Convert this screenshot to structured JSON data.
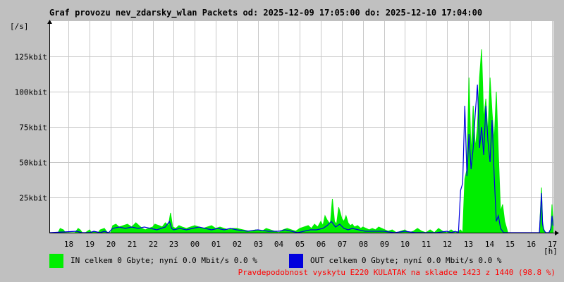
{
  "title": "Graf provozu nev_zdarsky_wlan Packets od: 2025-12-09 17:05:00 do: 2025-12-10 17:04:00",
  "colors": {
    "background": "#c0c0c0",
    "plot_background": "#ffffff",
    "grid": "#c8c8c8",
    "in_series": "#00ee00",
    "out_series": "#0000dd",
    "footer_text": "#ff0000"
  },
  "chart_data": {
    "type": "area",
    "title": "Graf provozu nev_zdarsky_wlan Packets od: 2025-12-09 17:05:00 do: 2025-12-10 17:04:00",
    "ylabel": "[/s]",
    "xlabel": "[h]",
    "ylim": [
      0,
      150
    ],
    "y_unit": "kbit",
    "grid": true,
    "y_ticks": [
      {
        "value": 25,
        "label": "25kbit"
      },
      {
        "value": 50,
        "label": "50kbit"
      },
      {
        "value": 75,
        "label": "75kbit"
      },
      {
        "value": 100,
        "label": "100kbit"
      },
      {
        "value": 125,
        "label": "125kbit"
      }
    ],
    "x_hours": [
      17.083,
      41.067
    ],
    "x_ticks": [
      {
        "hour": 18,
        "label": "18"
      },
      {
        "hour": 19,
        "label": "19"
      },
      {
        "hour": 20,
        "label": "20"
      },
      {
        "hour": 21,
        "label": "21"
      },
      {
        "hour": 22,
        "label": "22"
      },
      {
        "hour": 23,
        "label": "23"
      },
      {
        "hour": 24,
        "label": "00"
      },
      {
        "hour": 25,
        "label": "01"
      },
      {
        "hour": 26,
        "label": "02"
      },
      {
        "hour": 27,
        "label": "03"
      },
      {
        "hour": 28,
        "label": "04"
      },
      {
        "hour": 29,
        "label": "05"
      },
      {
        "hour": 30,
        "label": "06"
      },
      {
        "hour": 31,
        "label": "07"
      },
      {
        "hour": 32,
        "label": "08"
      },
      {
        "hour": 33,
        "label": "09"
      },
      {
        "hour": 34,
        "label": "10"
      },
      {
        "hour": 35,
        "label": "11"
      },
      {
        "hour": 36,
        "label": "12"
      },
      {
        "hour": 37,
        "label": "13"
      },
      {
        "hour": 38,
        "label": "14"
      },
      {
        "hour": 39,
        "label": "15"
      },
      {
        "hour": 40,
        "label": "16"
      },
      {
        "hour": 41,
        "label": "17"
      }
    ],
    "series": [
      {
        "name": "IN",
        "style": "area",
        "x": [
          17.1,
          17.5,
          17.6,
          17.75,
          17.85,
          17.95,
          18.3,
          18.45,
          18.55,
          18.65,
          18.8,
          19.0,
          19.1,
          19.2,
          19.4,
          19.5,
          19.7,
          19.85,
          20.0,
          20.1,
          20.25,
          20.4,
          20.6,
          20.8,
          21.0,
          21.2,
          21.35,
          21.5,
          21.65,
          21.8,
          22.0,
          22.1,
          22.3,
          22.45,
          22.6,
          22.75,
          22.85,
          22.95,
          23.1,
          23.25,
          23.4,
          23.6,
          23.8,
          24.0,
          24.2,
          24.4,
          24.6,
          24.8,
          25.0,
          25.2,
          25.4,
          25.6,
          25.8,
          26.0,
          26.3,
          26.6,
          26.9,
          27.2,
          27.4,
          27.6,
          27.8,
          28.0,
          28.2,
          28.4,
          28.6,
          28.8,
          29.0,
          29.2,
          29.4,
          29.55,
          29.7,
          29.85,
          30.0,
          30.1,
          30.2,
          30.3,
          30.45,
          30.55,
          30.65,
          30.75,
          30.85,
          31.0,
          31.1,
          31.2,
          31.3,
          31.4,
          31.5,
          31.6,
          31.75,
          31.9,
          32.0,
          32.15,
          32.3,
          32.45,
          32.6,
          32.75,
          32.9,
          33.05,
          33.2,
          33.4,
          33.6,
          33.8,
          34.0,
          34.2,
          34.4,
          34.6,
          34.8,
          35.0,
          35.2,
          35.4,
          35.6,
          35.8,
          36.0,
          36.2,
          36.4,
          36.55,
          36.65,
          36.75,
          36.85,
          36.95,
          37.05,
          37.15,
          37.25,
          37.35,
          37.45,
          37.55,
          37.65,
          37.75,
          37.85,
          37.95,
          38.05,
          38.15,
          38.25,
          38.35,
          38.45,
          38.55,
          38.65,
          38.75,
          38.9,
          39.0,
          39.1,
          39.3,
          39.6,
          39.9,
          40.2,
          40.4,
          40.5,
          40.55,
          40.6,
          40.65,
          40.7,
          40.8,
          40.9,
          40.95,
          41.0,
          41.05
        ],
        "values": [
          0,
          0,
          3,
          2,
          0,
          0,
          0,
          3,
          2,
          0,
          0,
          2,
          0,
          1,
          0,
          2,
          3,
          0,
          0,
          5,
          6,
          4,
          5,
          6,
          4,
          7,
          5,
          3,
          2,
          3,
          4,
          6,
          5,
          4,
          7,
          5,
          14,
          4,
          3,
          5,
          4,
          3,
          4,
          5,
          4,
          3,
          4,
          5,
          3,
          4,
          3,
          2,
          3,
          3,
          2,
          1,
          2,
          1,
          3,
          2,
          1,
          0,
          2,
          3,
          2,
          1,
          3,
          4,
          5,
          3,
          6,
          4,
          8,
          5,
          12,
          9,
          6,
          24,
          8,
          6,
          18,
          10,
          8,
          12,
          7,
          5,
          6,
          4,
          5,
          3,
          4,
          3,
          2,
          3,
          2,
          4,
          3,
          2,
          1,
          2,
          0,
          1,
          2,
          0,
          1,
          3,
          1,
          0,
          2,
          0,
          3,
          1,
          0,
          2,
          0,
          1,
          2,
          0,
          38,
          45,
          110,
          55,
          90,
          60,
          75,
          110,
          130,
          80,
          95,
          70,
          110,
          85,
          65,
          100,
          55,
          15,
          20,
          8,
          0,
          0,
          0,
          0,
          0,
          0,
          0,
          0,
          32,
          8,
          3,
          1,
          0,
          0,
          0,
          5,
          20,
          8
        ]
      },
      {
        "name": "OUT",
        "style": "line",
        "x": [
          17.1,
          18.4,
          18.6,
          19.0,
          19.2,
          19.5,
          19.7,
          19.9,
          20.1,
          20.4,
          20.7,
          21.0,
          21.3,
          21.6,
          21.9,
          22.2,
          22.4,
          22.6,
          22.8,
          22.9,
          23.0,
          23.3,
          23.6,
          23.9,
          24.2,
          24.5,
          24.8,
          25.1,
          25.4,
          25.7,
          26.0,
          26.5,
          27.0,
          27.5,
          28.0,
          28.3,
          28.6,
          28.9,
          29.2,
          29.5,
          29.8,
          30.1,
          30.3,
          30.5,
          30.7,
          30.9,
          31.1,
          31.3,
          31.5,
          31.8,
          32.1,
          32.5,
          33.0,
          33.5,
          34.0,
          34.5,
          35.0,
          35.5,
          36.0,
          36.2,
          36.4,
          36.55,
          36.65,
          36.75,
          36.85,
          36.95,
          37.05,
          37.15,
          37.25,
          37.35,
          37.45,
          37.55,
          37.65,
          37.75,
          37.85,
          37.95,
          38.05,
          38.15,
          38.25,
          38.35,
          38.45,
          38.55,
          38.7,
          38.9,
          39.2,
          39.6,
          40.0,
          40.4,
          40.5,
          40.55,
          40.6,
          40.7,
          40.85,
          40.95,
          41.0,
          41.05
        ],
        "values": [
          0,
          1,
          0,
          0,
          1,
          0,
          1,
          0,
          3,
          4,
          3,
          4,
          3,
          4,
          3,
          2,
          3,
          4,
          8,
          3,
          2,
          3,
          2,
          3,
          4,
          3,
          2,
          3,
          2,
          3,
          2,
          1,
          2,
          1,
          1,
          2,
          1,
          0,
          1,
          2,
          2,
          3,
          5,
          8,
          4,
          6,
          3,
          2,
          3,
          2,
          1,
          1,
          1,
          0,
          1,
          0,
          0,
          0,
          1,
          0,
          1,
          0,
          30,
          35,
          90,
          40,
          70,
          45,
          60,
          85,
          105,
          60,
          75,
          55,
          90,
          65,
          50,
          80,
          40,
          8,
          12,
          3,
          0,
          0,
          0,
          0,
          0,
          0,
          28,
          6,
          2,
          0,
          0,
          3,
          12,
          5
        ]
      }
    ]
  },
  "legend": [
    {
      "label": "IN celkem 0 Gbyte; nyní   0.0 Mbit/s 0.0 %",
      "color": "#00ee00"
    },
    {
      "label": "OUT celkem 0 Gbyte; nyní  0.0 Mbit/s 0.0 %",
      "color": "#0000dd"
    }
  ],
  "footer_note": "Pravdepodobnost vyskytu E220 KULATAK na skladce 1423 z 1440 (98.8 %)"
}
